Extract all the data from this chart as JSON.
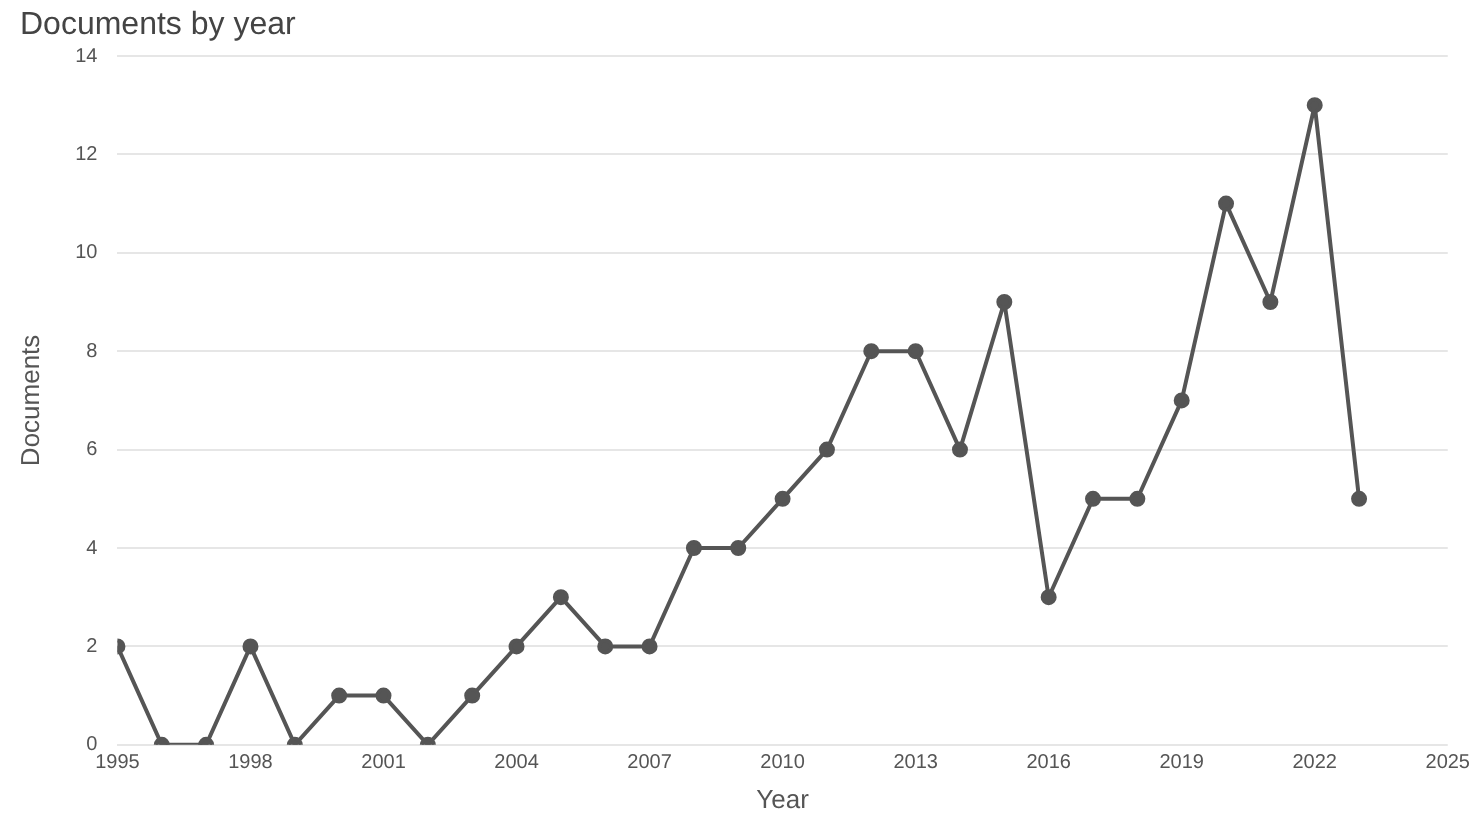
{
  "chart_data": {
    "type": "line",
    "title": "Documents by year",
    "xlabel": "Year",
    "ylabel": "Documents",
    "x": [
      1995,
      1996,
      1997,
      1998,
      1999,
      2000,
      2001,
      2002,
      2003,
      2004,
      2005,
      2006,
      2007,
      2008,
      2009,
      2010,
      2011,
      2012,
      2013,
      2014,
      2015,
      2016,
      2017,
      2018,
      2019,
      2020,
      2021,
      2022,
      2023
    ],
    "series": [
      {
        "color": "#555555",
        "values": [
          2,
          0,
          0,
          2,
          0,
          1,
          1,
          0,
          1,
          2,
          3,
          2,
          2,
          4,
          4,
          5,
          6,
          8,
          8,
          6,
          9,
          3,
          5,
          5,
          7,
          11,
          9,
          13,
          5
        ]
      }
    ],
    "xlim": [
      1995,
      2025
    ],
    "xticks": [
      1995,
      1998,
      2001,
      2004,
      2007,
      2010,
      2013,
      2016,
      2019,
      2022,
      2025
    ],
    "ylim": [
      0,
      14
    ],
    "yticks": [
      0,
      2,
      4,
      6,
      8,
      10,
      12,
      14
    ],
    "grid": "y",
    "legend": false,
    "marker": "circle",
    "line_style": "solid"
  }
}
